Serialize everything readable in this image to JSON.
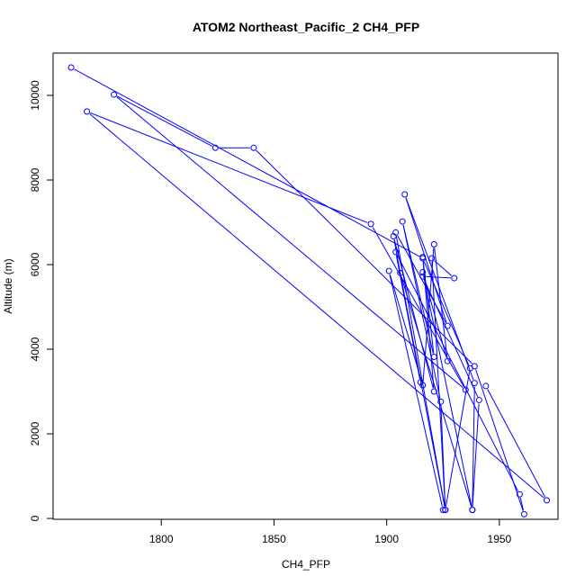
{
  "chart_data": {
    "type": "line",
    "title": "ATOM2 Northeast_Pacific_2 CH4_PFP",
    "xlabel": "CH4_PFP",
    "ylabel": "Altitude (m)",
    "xlim": [
      1752,
      1976
    ],
    "ylim": [
      -20,
      11000
    ],
    "xticks": [
      1800,
      1850,
      1900,
      1950
    ],
    "yticks": [
      0,
      2000,
      4000,
      6000,
      8000,
      10000
    ],
    "grid": false,
    "legend": "none",
    "color": "#0000ff",
    "series": [
      {
        "points": [
          [
            1760,
            10660
          ],
          [
            1916,
            6150
          ],
          [
            1937,
            3550
          ],
          [
            1926,
            200
          ],
          [
            1925,
            200
          ],
          [
            1901,
            5850
          ],
          [
            1916,
            3150
          ],
          [
            1921,
            6480
          ],
          [
            1927,
            3720
          ],
          [
            1916,
            5820
          ],
          [
            1938,
            200
          ],
          [
            1939,
            3200
          ],
          [
            1908,
            7660
          ],
          [
            1927,
            4550
          ],
          [
            1904,
            6760
          ],
          [
            1926,
            200
          ],
          [
            1906,
            5800
          ],
          [
            1938,
            200
          ],
          [
            1941,
            2800
          ],
          [
            1916,
            5720
          ],
          [
            1930,
            5680
          ],
          [
            1920,
            6150
          ],
          [
            1926,
            200
          ],
          [
            1924,
            2760
          ],
          [
            1907,
            7020
          ],
          [
            1921,
            3820
          ],
          [
            1916,
            6180
          ],
          [
            1921,
            3000
          ],
          [
            1903,
            6670
          ],
          [
            1915,
            3220
          ],
          [
            1904,
            6300
          ],
          [
            1959,
            570
          ],
          [
            1961,
            100
          ],
          [
            1939,
            3600
          ],
          [
            1841,
            8760
          ],
          [
            1824,
            8760
          ],
          [
            1779,
            10020
          ],
          [
            1935,
            3040
          ],
          [
            1893,
            6960
          ],
          [
            1767,
            9620
          ],
          [
            1971,
            430
          ],
          [
            1944,
            3130
          ]
        ]
      }
    ]
  }
}
